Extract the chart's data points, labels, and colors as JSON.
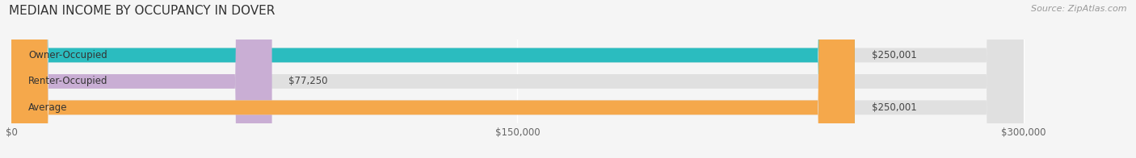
{
  "title": "MEDIAN INCOME BY OCCUPANCY IN DOVER",
  "source": "Source: ZipAtlas.com",
  "categories": [
    "Owner-Occupied",
    "Renter-Occupied",
    "Average"
  ],
  "values": [
    250001,
    77250,
    250001
  ],
  "bar_colors": [
    "#2bbcbf",
    "#c9aed4",
    "#f5a84b"
  ],
  "bar_labels": [
    "$250,001",
    "$77,250",
    "$250,001"
  ],
  "xlim": [
    0,
    300000
  ],
  "xticks": [
    0,
    150000,
    300000
  ],
  "xtick_labels": [
    "$0",
    "$150,000",
    "$300,000"
  ],
  "bg_color": "#f5f5f5",
  "bar_bg_color": "#e0e0e0",
  "title_fontsize": 11,
  "label_fontsize": 8.5,
  "tick_fontsize": 8.5,
  "source_fontsize": 8
}
